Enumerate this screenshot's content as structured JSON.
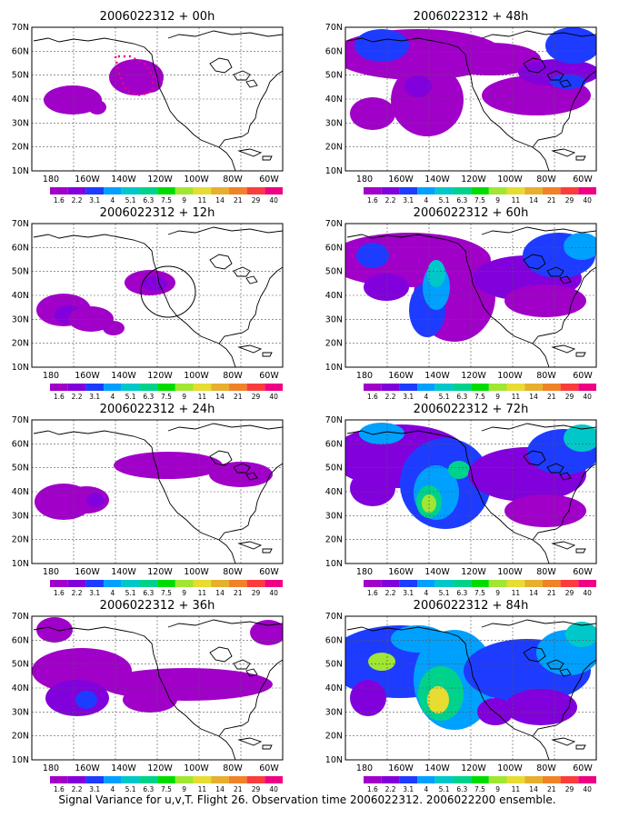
{
  "caption": "Signal Variance for u,v,T. Flight 26. Observation time 2006022312. 2006022200 ensemble.",
  "lat_labels": [
    "70N",
    "60N",
    "50N",
    "40N",
    "30N",
    "20N",
    "10N"
  ],
  "lon_labels": [
    "180",
    "160W",
    "140W",
    "120W",
    "100W",
    "80W",
    "60W"
  ],
  "colorbar": {
    "labels": [
      "1.6",
      "2.2",
      "3.1",
      "4",
      "5.1",
      "6.3",
      "7.5",
      "9",
      "11",
      "14",
      "21",
      "29",
      "40"
    ],
    "colors": [
      "#a000c8",
      "#8200dc",
      "#1e3cff",
      "#00a0ff",
      "#00c8c8",
      "#00d28c",
      "#00dc00",
      "#a0e632",
      "#e6dc32",
      "#e6af2d",
      "#f08228",
      "#fa3c3c",
      "#f00082"
    ]
  },
  "panels": [
    {
      "title": "2006022312 + 00h"
    },
    {
      "title": "2006022312 + 48h"
    },
    {
      "title": "2006022312 + 12h"
    },
    {
      "title": "2006022312 + 60h"
    },
    {
      "title": "2006022312 + 24h"
    },
    {
      "title": "2006022312 + 72h"
    },
    {
      "title": "2006022312 + 36h"
    },
    {
      "title": "2006022312 + 84h"
    }
  ]
}
